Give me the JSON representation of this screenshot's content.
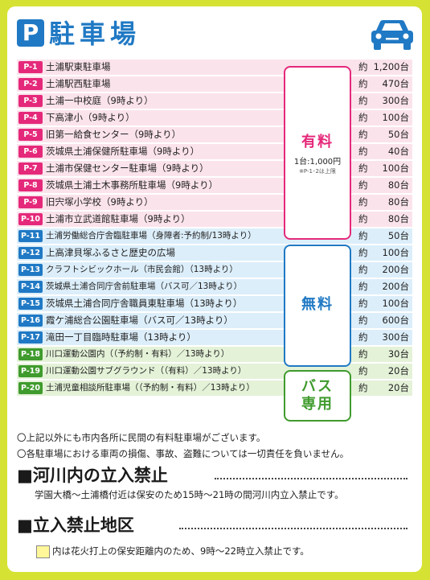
{
  "header": {
    "logo_letter": "P",
    "title": "駐車場",
    "icon": "car-icon"
  },
  "yaku": "約",
  "rows": [
    {
      "code": "P-1",
      "name": "土浦駅東駐車場",
      "count": "1,200台",
      "group": "pink"
    },
    {
      "code": "P-2",
      "name": "土浦駅西駐車場",
      "count": "470台",
      "group": "pink"
    },
    {
      "code": "P-3",
      "name": "土浦一中校庭（9時より）",
      "count": "300台",
      "group": "pink"
    },
    {
      "code": "P-4",
      "name": "下高津小（9時より）",
      "count": "100台",
      "group": "pink"
    },
    {
      "code": "P-5",
      "name": "旧第一給食センター（9時より）",
      "count": "50台",
      "group": "pink"
    },
    {
      "code": "P-6",
      "name": "茨城県土浦保健所駐車場（9時より）",
      "count": "40台",
      "group": "pink"
    },
    {
      "code": "P-7",
      "name": "土浦市保健センター駐車場（9時より）",
      "count": "100台",
      "group": "pink"
    },
    {
      "code": "P-8",
      "name": "茨城県土浦土木事務所駐車場（9時より）",
      "count": "80台",
      "group": "pink"
    },
    {
      "code": "P-9",
      "name": "旧宍塚小学校（9時より）",
      "count": "80台",
      "group": "pink"
    },
    {
      "code": "P-10",
      "name": "土浦市立武道館駐車場（9時より）",
      "count": "80台",
      "group": "pink"
    },
    {
      "code": "P-11",
      "name": "土浦労働総合庁舎臨駐車場（身障者:予約制/13時より）",
      "count": "50台",
      "group": "blue"
    },
    {
      "code": "P-12",
      "name": "上高津貝塚ふるさと歴史の広場",
      "count": "100台",
      "group": "blue"
    },
    {
      "code": "P-13",
      "name": "クラフトシビックホール（市民会館）（13時より）",
      "count": "200台",
      "group": "blue"
    },
    {
      "code": "P-14",
      "name": "茨城県土浦合同庁舎前駐車場（バス可／13時より）",
      "count": "200台",
      "group": "blue"
    },
    {
      "code": "P-15",
      "name": "茨城県土浦合同庁舎職員東駐車場（13時より）",
      "count": "100台",
      "group": "blue"
    },
    {
      "code": "P-16",
      "name": "霞ケ浦総合公園駐車場（バス可／13時より）",
      "count": "600台",
      "group": "blue"
    },
    {
      "code": "P-17",
      "name": "滝田一丁目臨時駐車場（13時より）",
      "count": "300台",
      "group": "blue"
    },
    {
      "code": "P-18",
      "name": "川口運動公園内（（予約制・有料）／13時より）",
      "count": "30台",
      "group": "green"
    },
    {
      "code": "P-19",
      "name": "川口運動公園サブグラウンド（（有料）／13時より）",
      "count": "20台",
      "group": "green"
    },
    {
      "code": "P-20",
      "name": "土浦児童相談所駐車場（（予約制・有料）／13時より）",
      "count": "20台",
      "group": "green"
    }
  ],
  "boxes": {
    "paid": {
      "title": "有料",
      "price": "1台:1,000円",
      "note": "※P-1･2は上限"
    },
    "free": {
      "title": "無料"
    },
    "bus": {
      "line1": "バス",
      "line2": "専用"
    }
  },
  "notes": [
    "〇上記以外にも市内各所に民間の有料駐車場がございます。",
    "〇各駐車場における車両の損傷、事故、盗難については一切責任を負いません。"
  ],
  "section1": {
    "title": "■河川内の立入禁止",
    "text": "学園大橋～土浦橋付近は保安のため15時～21時の間河川内立入禁止です。"
  },
  "section2": {
    "title": "■立入禁止地区",
    "text": "内は花火打上の保安距離内のため、9時～22時立入禁止です。",
    "swatch_color": "#fff799"
  }
}
